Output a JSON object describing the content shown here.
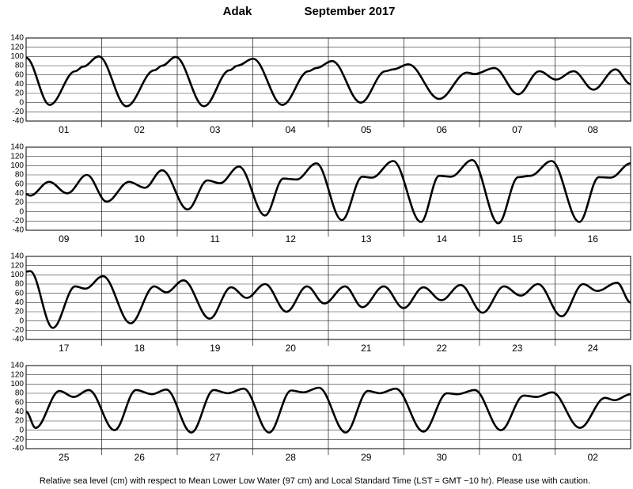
{
  "title": "Adak",
  "period": "September 2017",
  "note": "Relative sea level (cm) with respect to Mean Lower Low Water (97 cm) and Local Standard Time (LST = GMT −10 hr). Please use with caution.",
  "chart_data": [
    {
      "type": "line",
      "color": "#000000",
      "xlim": [
        0,
        192
      ],
      "ylim": [
        -40,
        140
      ],
      "yticks": [
        -40,
        -20,
        0,
        20,
        40,
        60,
        80,
        100,
        120,
        140
      ],
      "grid": true,
      "categories": [
        "01",
        "02",
        "03",
        "04",
        "05",
        "06",
        "07",
        "08"
      ],
      "x": [
        0,
        7.5,
        15.6,
        18.1,
        23.1,
        31.9,
        40.7,
        43.2,
        47.5,
        56.5,
        64.6,
        67.1,
        72.1,
        81.4,
        89.7,
        92.2,
        97.2,
        106.3,
        114.1,
        116.6,
        121.4,
        131.2,
        140,
        142.5,
        148.7,
        156.3,
        163,
        168.3,
        173.9,
        180.2,
        187.2,
        192
      ],
      "values": [
        97,
        -5,
        68,
        78,
        100,
        -8,
        70,
        80,
        99,
        -8,
        70,
        80,
        95,
        -5,
        68,
        75,
        90,
        0,
        68,
        72,
        83,
        8,
        65,
        62,
        75,
        18,
        68,
        50,
        68,
        28,
        72,
        40
      ]
    },
    {
      "type": "line",
      "color": "#000000",
      "xlim": [
        0,
        192
      ],
      "ylim": [
        -40,
        140
      ],
      "yticks": [
        -40,
        -20,
        0,
        20,
        40,
        60,
        80,
        100,
        120,
        140
      ],
      "grid": true,
      "categories": [
        "09",
        "10",
        "11",
        "12",
        "13",
        "14",
        "15",
        "16"
      ],
      "x": [
        0,
        1.3,
        7.3,
        13.1,
        19.3,
        25.6,
        32.7,
        37.7,
        43.2,
        51.3,
        57.6,
        61.6,
        67.6,
        75.9,
        81.7,
        85.9,
        92.2,
        100.3,
        106.8,
        109.8,
        116.6,
        125.4,
        131.2,
        134.9,
        141.7,
        150,
        156.3,
        160.1,
        166.9,
        175.7,
        181.9,
        185.7,
        192
      ],
      "values": [
        38,
        35,
        65,
        40,
        80,
        22,
        65,
        52,
        90,
        5,
        68,
        62,
        98,
        -8,
        72,
        70,
        105,
        -18,
        76,
        74,
        110,
        -22,
        78,
        76,
        112,
        -25,
        75,
        78,
        110,
        -22,
        75,
        74,
        105
      ]
    },
    {
      "type": "line",
      "color": "#000000",
      "xlim": [
        0,
        192
      ],
      "ylim": [
        -40,
        140
      ],
      "yticks": [
        -40,
        -20,
        0,
        20,
        40,
        60,
        80,
        100,
        120,
        140
      ],
      "grid": true,
      "categories": [
        "17",
        "18",
        "19",
        "20",
        "21",
        "22",
        "23",
        "24"
      ],
      "x": [
        0,
        1.3,
        8.5,
        15.6,
        18.8,
        24.4,
        33.2,
        40.7,
        44.5,
        50,
        58.3,
        65.1,
        70.1,
        75.9,
        82.7,
        89.2,
        94.7,
        101.3,
        106.8,
        113.6,
        119.9,
        126.2,
        131.9,
        138,
        145,
        151.8,
        157.1,
        162.6,
        170.1,
        176.9,
        181.4,
        187.7,
        192
      ],
      "values": [
        107,
        108,
        -15,
        75,
        70,
        97,
        -5,
        75,
        62,
        88,
        5,
        73,
        50,
        80,
        20,
        75,
        38,
        75,
        30,
        75,
        28,
        73,
        45,
        78,
        18,
        75,
        55,
        80,
        10,
        80,
        65,
        83,
        40
      ]
    },
    {
      "type": "line",
      "color": "#000000",
      "xlim": [
        0,
        192
      ],
      "ylim": [
        -40,
        140
      ],
      "yticks": [
        -40,
        -20,
        0,
        20,
        40,
        60,
        80,
        100,
        120,
        140
      ],
      "grid": true,
      "categories": [
        "25",
        "26",
        "27",
        "28",
        "29",
        "30",
        "01",
        "02"
      ],
      "x": [
        0,
        3,
        10.6,
        15.1,
        19.9,
        28.1,
        34.9,
        40,
        44.5,
        52.5,
        59.6,
        64.1,
        69.1,
        77.2,
        84.2,
        88,
        93,
        101.5,
        108.6,
        112.3,
        117.4,
        126.2,
        133.7,
        137,
        142.5,
        150.8,
        158.1,
        162.1,
        167.1,
        175.9,
        183.9,
        186.9,
        192
      ],
      "values": [
        40,
        5,
        85,
        72,
        87,
        0,
        87,
        78,
        88,
        -5,
        87,
        80,
        90,
        -5,
        86,
        82,
        92,
        -5,
        85,
        80,
        90,
        -3,
        80,
        78,
        87,
        0,
        75,
        72,
        82,
        5,
        70,
        65,
        78
      ]
    }
  ]
}
